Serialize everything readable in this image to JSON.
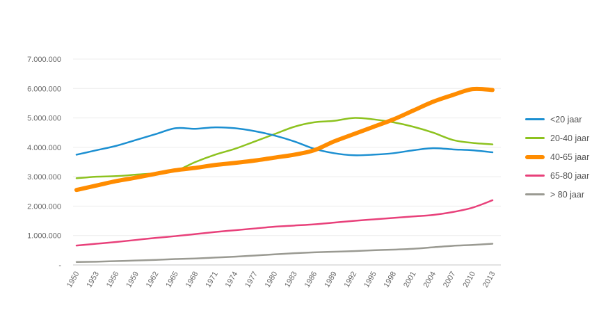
{
  "chart_data": {
    "type": "line",
    "title": "",
    "xlabel": "",
    "ylabel": "",
    "x": [
      1950,
      1953,
      1956,
      1959,
      1962,
      1965,
      1968,
      1971,
      1974,
      1977,
      1980,
      1983,
      1986,
      1989,
      1992,
      1995,
      1998,
      2001,
      2004,
      2007,
      2010,
      2013
    ],
    "x_tick_labels": [
      "1950",
      "1953",
      "1956",
      "1959",
      "1962",
      "1965",
      "1968",
      "1971",
      "1974",
      "1977",
      "1980",
      "1983",
      "1986",
      "1989",
      "1992",
      "1995",
      "1998",
      "2001",
      "2004",
      "2007",
      "2010",
      "2013"
    ],
    "y_tick_values": [
      0,
      1000000,
      2000000,
      3000000,
      4000000,
      5000000,
      6000000,
      7000000
    ],
    "y_tick_labels": [
      "-",
      "1.000.000",
      "2.000.000",
      "3.000.000",
      "4.000.000",
      "5.000.000",
      "6.000.000",
      "7.000.000"
    ],
    "ylim": [
      0,
      7000000
    ],
    "grid": true,
    "legend_position": "right",
    "series": [
      {
        "name": "<20 jaar",
        "color": "#1b8fd1",
        "width": 2.5,
        "values": [
          3750000,
          3900000,
          4050000,
          4250000,
          4450000,
          4650000,
          4630000,
          4680000,
          4650000,
          4550000,
          4400000,
          4200000,
          3950000,
          3800000,
          3730000,
          3750000,
          3800000,
          3900000,
          3970000,
          3930000,
          3900000,
          3830000
        ]
      },
      {
        "name": "20-40 jaar",
        "color": "#8dc21f",
        "width": 2.5,
        "values": [
          2950000,
          3000000,
          3020000,
          3070000,
          3120000,
          3200000,
          3500000,
          3750000,
          3950000,
          4200000,
          4450000,
          4700000,
          4850000,
          4900000,
          5000000,
          4950000,
          4850000,
          4700000,
          4500000,
          4250000,
          4150000,
          4100000
        ]
      },
      {
        "name": "40-65 jaar",
        "color": "#ff8c00",
        "width": 6,
        "values": [
          2550000,
          2700000,
          2850000,
          2970000,
          3100000,
          3220000,
          3300000,
          3400000,
          3470000,
          3550000,
          3650000,
          3750000,
          3900000,
          4200000,
          4450000,
          4700000,
          4950000,
          5250000,
          5550000,
          5780000,
          5980000,
          5950000
        ]
      },
      {
        "name": "65-80 jaar",
        "color": "#e8407a",
        "width": 2.5,
        "values": [
          660000,
          720000,
          780000,
          850000,
          920000,
          980000,
          1050000,
          1120000,
          1180000,
          1240000,
          1300000,
          1340000,
          1380000,
          1440000,
          1500000,
          1550000,
          1600000,
          1650000,
          1700000,
          1800000,
          1950000,
          2200000
        ]
      },
      {
        "name": "> 80 jaar",
        "color": "#9a9a92",
        "width": 2.5,
        "values": [
          100000,
          110000,
          130000,
          150000,
          170000,
          200000,
          220000,
          250000,
          280000,
          320000,
          360000,
          400000,
          430000,
          450000,
          470000,
          500000,
          520000,
          550000,
          600000,
          650000,
          680000,
          720000
        ]
      }
    ]
  }
}
